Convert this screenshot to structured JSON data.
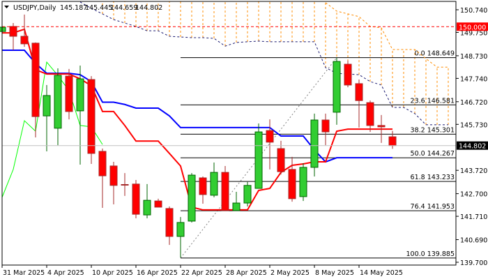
{
  "header": {
    "symbol_timeframe": "USDJPY,Daily",
    "open": "145.187",
    "high": "145.445",
    "low": "144.659",
    "close": "144.802"
  },
  "colors": {
    "bull": "#32cd32",
    "bear": "#ff0000",
    "bull_outline": "#006400",
    "bear_outline": "#a52a2a",
    "tenkan": "#ff0000",
    "kijun": "#0000ff",
    "chikou": "#00ff00",
    "span_a": "#191970",
    "span_b": "#ff8c00",
    "fib": "#000000",
    "level_150": "#ff0000",
    "current_price": "#c0c0c0"
  },
  "chart_data": {
    "type": "candlestick",
    "title": "USDJPY,Daily",
    "ylim": [
      139.7,
      150.74
    ],
    "grid": false,
    "y_ticks": [
      "150.740",
      "149.750",
      "148.730",
      "147.740",
      "146.720",
      "145.730",
      "143.720",
      "142.700",
      "141.710",
      "140.690",
      "139.700"
    ],
    "x_ticks": [
      {
        "bar": 0,
        "label": "31 Mar 2025"
      },
      {
        "bar": 4,
        "label": "4 Apr 2025"
      },
      {
        "bar": 8,
        "label": "10 Apr 2025"
      },
      {
        "bar": 12,
        "label": "16 Apr 2025"
      },
      {
        "bar": 16,
        "label": "22 Apr 2025"
      },
      {
        "bar": 20,
        "label": "28 Apr 2025"
      },
      {
        "bar": 24,
        "label": "2 May 2025"
      },
      {
        "bar": 28,
        "label": "8 May 2025"
      },
      {
        "bar": 32,
        "label": "14 May 2025"
      }
    ],
    "candles": [
      [
        149.79,
        150.07,
        149.76,
        149.98
      ],
      [
        150.01,
        150.16,
        148.97,
        149.58
      ],
      [
        149.58,
        150.53,
        149.12,
        149.25
      ],
      [
        149.28,
        149.31,
        145.16,
        146.07
      ],
      [
        146.1,
        147.45,
        144.55,
        146.99
      ],
      [
        145.56,
        148.18,
        144.82,
        147.87
      ],
      [
        147.84,
        148.15,
        145.95,
        146.29
      ],
      [
        146.32,
        148.3,
        143.97,
        147.72
      ],
      [
        147.69,
        147.84,
        144.0,
        144.46
      ],
      [
        144.55,
        144.67,
        142.08,
        143.48
      ],
      [
        143.91,
        144.09,
        142.23,
        143.06
      ],
      [
        143.1,
        143.6,
        142.6,
        143.08
      ],
      [
        143.12,
        143.3,
        141.62,
        141.8
      ],
      [
        141.77,
        143.12,
        141.62,
        142.41
      ],
      [
        142.38,
        142.48,
        142.11,
        142.11
      ],
      [
        142.05,
        142.14,
        140.46,
        140.83
      ],
      [
        140.83,
        141.68,
        139.91,
        141.44
      ],
      [
        141.5,
        143.6,
        141.44,
        143.51
      ],
      [
        143.39,
        143.45,
        142.26,
        142.66
      ],
      [
        142.63,
        144.06,
        142.54,
        143.63
      ],
      [
        143.63,
        143.91,
        141.96,
        141.96
      ],
      [
        141.96,
        142.78,
        141.96,
        142.29
      ],
      [
        142.29,
        143.21,
        142.14,
        143.06
      ],
      [
        142.93,
        145.77,
        142.93,
        145.4
      ],
      [
        145.46,
        145.95,
        143.76,
        144.95
      ],
      [
        144.67,
        145.01,
        143.54,
        143.66
      ],
      [
        143.76,
        144.31,
        142.35,
        142.48
      ],
      [
        142.57,
        144.03,
        142.38,
        143.85
      ],
      [
        143.85,
        146.2,
        143.45,
        145.92
      ],
      [
        145.92,
        146.2,
        144.82,
        145.4
      ],
      [
        146.26,
        148.64,
        145.71,
        148.48
      ],
      [
        148.36,
        148.52,
        147.35,
        147.45
      ],
      [
        147.51,
        147.69,
        145.59,
        146.77
      ],
      [
        146.68,
        146.77,
        145.4,
        145.68
      ],
      [
        145.68,
        146.14,
        144.92,
        145.62
      ],
      [
        145.187,
        145.445,
        144.659,
        144.802
      ]
    ],
    "tenkan": [
      149.73,
      149.73,
      149.89,
      148.12,
      147.93,
      147.93,
      147.93,
      147.72,
      147.42,
      146.29,
      146.29,
      145.68,
      145.0,
      145.0,
      145.0,
      144.46,
      143.91,
      142.11,
      141.99,
      141.99,
      141.99,
      141.99,
      141.99,
      142.84,
      142.93,
      143.63,
      143.94,
      144.0,
      144.09,
      144.09,
      145.43,
      145.52,
      145.52,
      145.52,
      145.52,
      145.52
    ],
    "kijun": [
      148.97,
      148.97,
      148.97,
      148.4,
      147.96,
      147.96,
      147.96,
      147.9,
      147.6,
      146.7,
      146.7,
      146.6,
      146.44,
      146.44,
      146.44,
      146.1,
      145.59,
      145.59,
      145.59,
      145.59,
      145.59,
      145.59,
      145.59,
      145.59,
      145.59,
      145.22,
      145.22,
      145.22,
      144.61,
      144.09,
      144.27,
      144.27,
      144.27,
      144.27,
      144.27,
      144.27
    ],
    "chikou": [
      142.54,
      143.76,
      145.89,
      145.43,
      148.45,
      147.87,
      147.2,
      145.68,
      145.62,
      144.85
    ],
    "span_a_start": 7,
    "span_a": [
      151.08,
      150.8,
      150.56,
      150.31,
      150.16,
      150.01,
      149.82,
      149.82,
      149.58,
      149.55,
      149.52,
      149.52,
      149.49,
      149.15,
      149.31,
      149.34,
      149.37,
      149.34,
      149.34,
      149.34,
      149.34,
      149.34,
      148.21,
      147.96,
      147.93,
      147.9,
      147.6,
      147.45,
      146.47,
      146.47,
      146.2,
      145.71,
      145.71,
      145.71
    ],
    "span_b_start": 29,
    "span_b": [
      151.05,
      150.68,
      150.56,
      150.44,
      150.01,
      149.95,
      149.0,
      149.0,
      149.0,
      148.6,
      148.23,
      148.23
    ],
    "cloud_start": 9,
    "level_150": {
      "value": 150.0,
      "label": "150.000"
    },
    "current_price": {
      "value": 144.802,
      "label": "144.802"
    },
    "fibonacci": {
      "start_bar": 16,
      "high_bar": 30,
      "levels": [
        {
          "ratio": "0.0",
          "price": 148.649,
          "label": "0.0 148.649"
        },
        {
          "ratio": "23.6",
          "price": 146.581,
          "label": "23.6 146.581"
        },
        {
          "ratio": "38.2",
          "price": 145.301,
          "label": "38.2 145.301"
        },
        {
          "ratio": "50.0",
          "price": 144.267,
          "label": "50.0 144.267"
        },
        {
          "ratio": "61.8",
          "price": 143.233,
          "label": "61.8 143.233"
        },
        {
          "ratio": "76.4",
          "price": 141.953,
          "label": "76.4 141.953"
        },
        {
          "ratio": "100.0",
          "price": 139.885,
          "label": "100.0 139.885"
        }
      ]
    }
  }
}
